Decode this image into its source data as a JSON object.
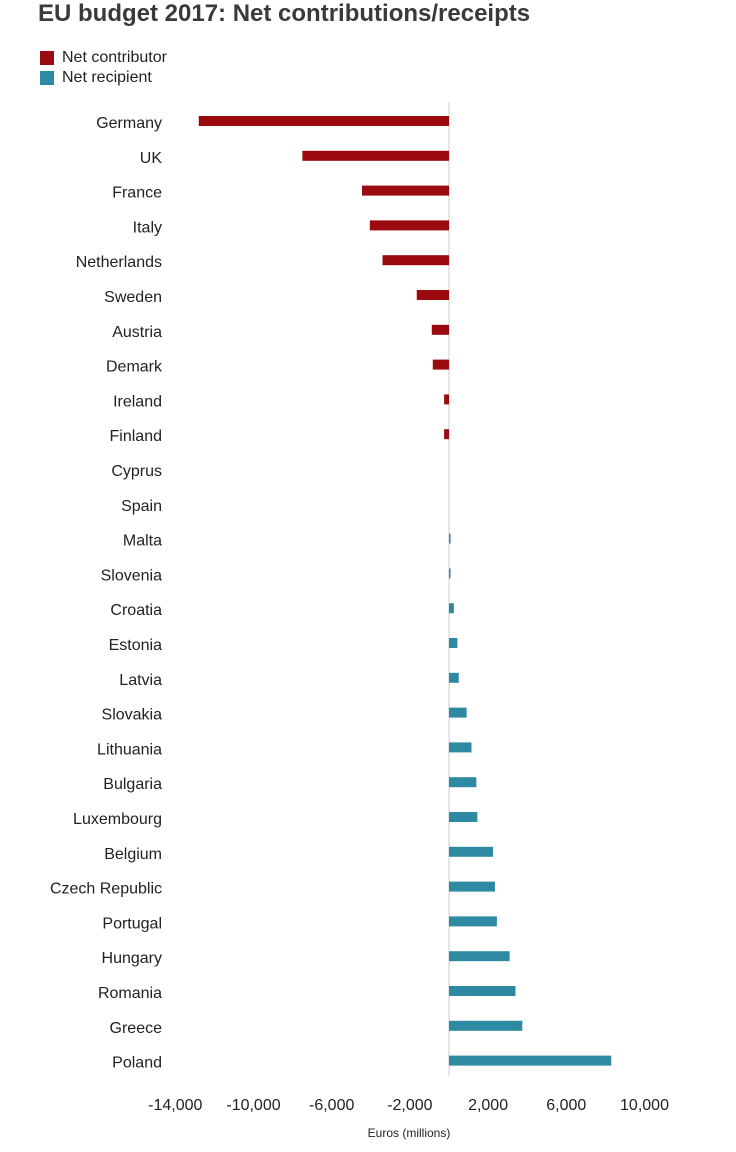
{
  "chart_data": {
    "type": "bar",
    "orientation": "horizontal",
    "title": "EU budget 2017: Net contributions/receipts",
    "xlabel": "Euros (millions)",
    "ylabel": "",
    "xlim": [
      -14000,
      10000
    ],
    "xticks": [
      -14000,
      -10000,
      -6000,
      -2000,
      2000,
      6000,
      10000
    ],
    "xtick_labels": [
      "-14,000",
      "-10,000",
      "-6,000",
      "-2,000",
      "2,000",
      "6,000",
      "10,000"
    ],
    "legend": [
      {
        "name": "Net contributor",
        "color": "#9b0a0f"
      },
      {
        "name": "Net recipient",
        "color": "#2e8aa3"
      }
    ],
    "categories": [
      "Germany",
      "UK",
      "France",
      "Italy",
      "Netherlands",
      "Sweden",
      "Austria",
      "Demark",
      "Ireland",
      "Finland",
      "Cyprus",
      "Spain",
      "Malta",
      "Slovenia",
      "Croatia",
      "Estonia",
      "Latvia",
      "Slovakia",
      "Lithuania",
      "Bulgaria",
      "Luxembourg",
      "Belgium",
      "Czech Republic",
      "Portugal",
      "Hungary",
      "Romania",
      "Greece",
      "Poland"
    ],
    "values": [
      -12800,
      -7500,
      -4450,
      -4050,
      -3400,
      -1650,
      -880,
      -830,
      -250,
      -250,
      0,
      0,
      80,
      50,
      250,
      430,
      500,
      900,
      1150,
      1400,
      1450,
      2250,
      2350,
      2450,
      3100,
      3400,
      3750,
      8300
    ],
    "grid": false
  }
}
